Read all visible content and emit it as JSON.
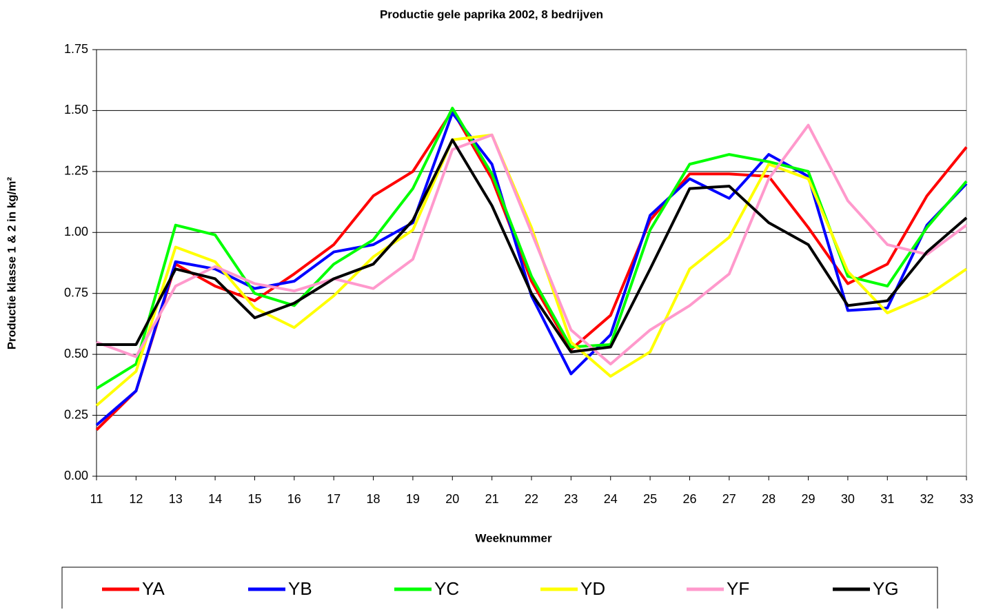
{
  "chart_data": {
    "type": "line",
    "title": "Productie gele paprika 2002, 8 bedrijven",
    "x_label": "Weeknummer",
    "y_label": "Productie klasse 1 & 2 in kg/m²",
    "categories": [
      "11",
      "12",
      "13",
      "14",
      "15",
      "16",
      "17",
      "18",
      "19",
      "20",
      "21",
      "22",
      "23",
      "24",
      "25",
      "26",
      "27",
      "28",
      "29",
      "30",
      "31",
      "32",
      "33"
    ],
    "ylim": [
      0,
      1.75
    ],
    "yticks": [
      {
        "value": 0,
        "label": "0.00"
      },
      0.25,
      {
        "value": 0.5,
        "label": "0.50"
      },
      0.75,
      {
        "value": 1,
        "label": "1.00"
      },
      1.25,
      {
        "value": 1.5,
        "label": "1.50"
      },
      1.75
    ],
    "grid": true,
    "legend": "bottom",
    "series": [
      {
        "name": "YA",
        "color": "#ff0000",
        "values": [
          0.19,
          0.35,
          0.87,
          0.78,
          0.72,
          0.83,
          0.95,
          1.15,
          1.25,
          1.5,
          1.22,
          0.8,
          0.52,
          0.66,
          1.05,
          1.24,
          1.24,
          1.23,
          1.02,
          0.79,
          0.87,
          1.15,
          1.35
        ]
      },
      {
        "name": "YB",
        "color": "#0000ff",
        "values": [
          0.21,
          0.35,
          0.88,
          0.85,
          0.77,
          0.8,
          0.92,
          0.95,
          1.04,
          1.49,
          1.28,
          0.74,
          0.42,
          0.58,
          1.07,
          1.22,
          1.14,
          1.32,
          1.23,
          0.68,
          0.69,
          1.03,
          1.2
        ]
      },
      {
        "name": "YC",
        "color": "#00ff00",
        "values": [
          0.36,
          0.46,
          1.03,
          0.99,
          0.75,
          0.7,
          0.87,
          0.97,
          1.18,
          1.51,
          1.24,
          0.82,
          0.53,
          0.54,
          1.01,
          1.28,
          1.32,
          1.29,
          1.25,
          0.82,
          0.78,
          1.02,
          1.21
        ]
      },
      {
        "name": "YD",
        "color": "#ffff00",
        "values": [
          0.29,
          0.43,
          0.94,
          0.88,
          0.69,
          0.61,
          0.74,
          0.9,
          1.01,
          1.38,
          1.4,
          1.02,
          0.55,
          0.41,
          0.51,
          0.85,
          0.98,
          1.28,
          1.22,
          0.84,
          0.67,
          0.74,
          0.85
        ]
      },
      {
        "name": "YF",
        "color": "#ff99cc",
        "values": [
          0.55,
          0.49,
          0.78,
          0.86,
          0.79,
          0.76,
          0.81,
          0.77,
          0.89,
          1.34,
          1.4,
          1.0,
          0.6,
          0.46,
          0.6,
          0.7,
          0.83,
          1.22,
          1.44,
          1.13,
          0.95,
          0.91,
          1.03
        ]
      },
      {
        "name": "YG",
        "color": "#000000",
        "values": [
          0.54,
          0.54,
          0.85,
          0.81,
          0.65,
          0.71,
          0.81,
          0.87,
          1.05,
          1.38,
          1.11,
          0.75,
          0.51,
          0.53,
          0.85,
          1.18,
          1.19,
          1.04,
          0.95,
          0.7,
          0.72,
          0.92,
          1.06
        ]
      }
    ]
  }
}
